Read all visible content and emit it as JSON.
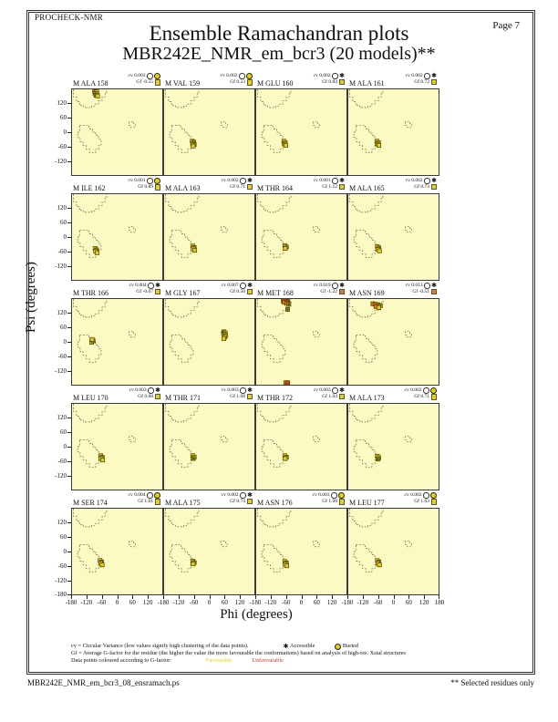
{
  "page": {
    "app_label": "PROCHECK-NMR",
    "page_number": "Page  7",
    "title": "Ensemble Ramachandran plots",
    "subtitle": "MBR242E_NMR_em_bcr3 (20 models)**",
    "footer_left": "MBR242E_NMR_em_bcr3_08_ensramach.ps",
    "footer_right": "** Selected residues only"
  },
  "axes": {
    "xlabel": "Phi (degrees)",
    "ylabel": "Psi (degrees)",
    "x_ticks": [
      -180,
      -120,
      -60,
      0,
      60,
      120
    ],
    "x_end_tick": 180,
    "y_ticks": [
      120,
      60,
      0,
      -60,
      -120
    ],
    "y_bottom_tick": -180,
    "range": [
      -180,
      180
    ]
  },
  "legend": {
    "cv_line": "cv = Circular Variance (low values signify high clustering of the data points).",
    "accessible_label": "Accessible",
    "buried_label": "Buried",
    "gf_line": "Gf = Average G-factor for the residue (the higher the value the more favourable the conformations)  based on analysis of high-res. Xstal structures",
    "points_line": "Data points coloured according to G-factor:",
    "favourable_label": "Favourable",
    "unfavourable_label": "Unfavourable"
  },
  "colors": {
    "plot_background": "#FAFAC2",
    "favourable_point": "#E2CB1E",
    "favourable_dark_point": "#9D8F06",
    "unfavourable_point": "#DE7417",
    "unfavourable_red_point": "#CE4410",
    "favourable_swatch": "#E8D400",
    "unfavourable_swatch": "#E07818",
    "buried_symbol": "#E8D400",
    "region_outline": "#666644"
  },
  "chart_data": {
    "type": "scatter",
    "grid": {
      "columns": 4,
      "rows": 5
    },
    "plots": [
      {
        "residue": "M ALA 158",
        "cv": "cv 0.003",
        "gf": "Gf -0.55",
        "accessibility": "buried",
        "gf_class": "favourable",
        "points": [
          [
            -90,
            172,
            "o"
          ],
          [
            -82,
            170,
            "y"
          ],
          [
            -88,
            163,
            "o"
          ],
          [
            -80,
            160,
            "y"
          ],
          [
            -85,
            155,
            "d"
          ],
          [
            -78,
            152,
            "y"
          ]
        ]
      },
      {
        "residue": "M VAL 159",
        "cv": "cv 0.002",
        "gf": "Gf 0.23",
        "accessibility": "buried",
        "gf_class": "favourable",
        "points": [
          [
            -68,
            -38,
            "y"
          ],
          [
            -62,
            -42,
            "d"
          ],
          [
            -66,
            -48,
            "y"
          ],
          [
            -60,
            -52,
            "d"
          ],
          [
            -64,
            -58,
            "y"
          ]
        ]
      },
      {
        "residue": "M GLU 160",
        "cv": "cv 0.002",
        "gf": "Gf 0.84",
        "accessibility": "accessible",
        "gf_class": "favourable",
        "points": [
          [
            -70,
            -38,
            "y"
          ],
          [
            -64,
            -44,
            "y"
          ],
          [
            -68,
            -50,
            "d"
          ],
          [
            -62,
            -55,
            "y"
          ]
        ]
      },
      {
        "residue": "M ALA 161",
        "cv": "cv 0.002",
        "gf": "Gf 0.72",
        "accessibility": "accessible",
        "gf_class": "favourable",
        "points": [
          [
            -66,
            -38,
            "y"
          ],
          [
            -60,
            -44,
            "y"
          ],
          [
            -64,
            -50,
            "d"
          ],
          [
            -58,
            -55,
            "y"
          ]
        ]
      },
      {
        "residue": "M ILE 162",
        "cv": "cv 0.001",
        "gf": "Gf 0.89",
        "accessibility": "buried",
        "gf_class": "favourable",
        "points": [
          [
            -88,
            -48,
            "y"
          ],
          [
            -82,
            -54,
            "d"
          ],
          [
            -86,
            -60,
            "y"
          ],
          [
            -80,
            -66,
            "y"
          ]
        ]
      },
      {
        "residue": "M ALA 163",
        "cv": "cv 0.002",
        "gf": "Gf 0.71",
        "accessibility": "accessible",
        "gf_class": "favourable",
        "points": [
          [
            -66,
            -38,
            "y"
          ],
          [
            -60,
            -44,
            "d"
          ],
          [
            -64,
            -50,
            "y"
          ],
          [
            -58,
            -56,
            "y"
          ]
        ]
      },
      {
        "residue": "M THR 164",
        "cv": "cv 0.001",
        "gf": "Gf 1.12",
        "accessibility": "accessible",
        "gf_class": "favourable",
        "points": [
          [
            -66,
            -36,
            "y"
          ],
          [
            -60,
            -42,
            "d"
          ],
          [
            -64,
            -48,
            "y"
          ]
        ]
      },
      {
        "residue": "M ALA 165",
        "cv": "cv 0.002",
        "gf": "Gf 0.73",
        "accessibility": "accessible",
        "gf_class": "favourable",
        "points": [
          [
            -64,
            -40,
            "y"
          ],
          [
            -58,
            -46,
            "d"
          ],
          [
            -62,
            -52,
            "y"
          ],
          [
            -56,
            -58,
            "y"
          ]
        ]
      },
      {
        "residue": "M THR 166",
        "cv": "cv 0.004",
        "gf": "Gf -0.07",
        "accessibility": "accessible",
        "gf_class": "favourable",
        "points": [
          [
            -102,
            -2,
            "y"
          ],
          [
            -96,
            4,
            "d"
          ],
          [
            -100,
            10,
            "y"
          ]
        ]
      },
      {
        "residue": "M GLY 167",
        "cv": "cv 0.007",
        "gf": "Gf 0.50",
        "accessibility": "accessible",
        "gf_class": "favourable",
        "points": [
          [
            58,
            42,
            "d"
          ],
          [
            64,
            38,
            "y"
          ],
          [
            60,
            32,
            "d"
          ],
          [
            66,
            26,
            "y"
          ],
          [
            62,
            20,
            "y"
          ],
          [
            58,
            14,
            "y"
          ]
        ]
      },
      {
        "residue": "M MET 168",
        "cv": "cv 0.019",
        "gf": "Gf -1.22",
        "accessibility": "accessible",
        "gf_class": "unfavourable",
        "points": [
          [
            -72,
            176,
            "r"
          ],
          [
            -62,
            174,
            "o"
          ],
          [
            -54,
            170,
            "r"
          ],
          [
            -68,
            166,
            "o"
          ],
          [
            -58,
            162,
            "o"
          ],
          [
            -50,
            158,
            "d"
          ],
          [
            -55,
            136,
            "d"
          ],
          [
            -62,
            -176,
            "o"
          ],
          [
            -54,
            -180,
            "r"
          ]
        ]
      },
      {
        "residue": "M ASN 169",
        "cv": "cv 0.013",
        "gf": "Gf -0.51",
        "accessibility": "accessible",
        "gf_class": "unfavourable",
        "points": [
          [
            -82,
            160,
            "o"
          ],
          [
            -72,
            158,
            "o"
          ],
          [
            -62,
            156,
            "o"
          ],
          [
            -52,
            152,
            "d"
          ],
          [
            -70,
            148,
            "o"
          ],
          [
            -58,
            144,
            "y"
          ]
        ]
      },
      {
        "residue": "M LEU 170",
        "cv": "cv 0.003",
        "gf": "Gf 0.68",
        "accessibility": "accessible",
        "gf_class": "favourable",
        "points": [
          [
            -66,
            -38,
            "y"
          ],
          [
            -60,
            -44,
            "d"
          ],
          [
            -64,
            -50,
            "y"
          ],
          [
            -58,
            -56,
            "y"
          ]
        ]
      },
      {
        "residue": "M THR 171",
        "cv": "cv 0.003",
        "gf": "Gf 1.08",
        "accessibility": "accessible",
        "gf_class": "favourable",
        "points": [
          [
            -66,
            -38,
            "y"
          ],
          [
            -60,
            -44,
            "y"
          ],
          [
            -64,
            -50,
            "d"
          ]
        ]
      },
      {
        "residue": "M THR 172",
        "cv": "cv 0.003",
        "gf": "Gf 1.04",
        "accessibility": "accessible",
        "gf_class": "favourable",
        "points": [
          [
            -66,
            -38,
            "y"
          ],
          [
            -60,
            -44,
            "d"
          ],
          [
            -64,
            -50,
            "y"
          ]
        ]
      },
      {
        "residue": "M ALA 173",
        "cv": "cv 0.002",
        "gf": "Gf 0.71",
        "accessibility": "buried",
        "gf_class": "favourable",
        "points": [
          [
            -64,
            -40,
            "y"
          ],
          [
            -58,
            -46,
            "y"
          ],
          [
            -62,
            -52,
            "d"
          ]
        ]
      },
      {
        "residue": "M SER 174",
        "cv": "cv 0.004",
        "gf": "Gf 1.01",
        "accessibility": "buried",
        "gf_class": "favourable",
        "points": [
          [
            -68,
            -38,
            "y"
          ],
          [
            -62,
            -44,
            "d"
          ],
          [
            -66,
            -50,
            "y"
          ],
          [
            -60,
            -56,
            "y"
          ]
        ]
      },
      {
        "residue": "M ALA 175",
        "cv": "cv 0.002",
        "gf": "Gf 0.74",
        "accessibility": "accessible",
        "gf_class": "favourable",
        "points": [
          [
            -66,
            -40,
            "y"
          ],
          [
            -60,
            -46,
            "d"
          ],
          [
            -64,
            -52,
            "y"
          ]
        ]
      },
      {
        "residue": "M ASN 176",
        "cv": "cv 0.003",
        "gf": "Gf 1.08",
        "accessibility": "buried",
        "gf_class": "favourable",
        "points": [
          [
            -66,
            -42,
            "y"
          ],
          [
            -60,
            -48,
            "d"
          ],
          [
            -64,
            -54,
            "y"
          ],
          [
            -58,
            -60,
            "y"
          ]
        ]
      },
      {
        "residue": "M LEU 177",
        "cv": "cv 0.002",
        "gf": "Gf 1.03",
        "accessibility": "buried",
        "gf_class": "favourable",
        "points": [
          [
            -64,
            -38,
            "y"
          ],
          [
            -58,
            -44,
            "d"
          ],
          [
            -62,
            -50,
            "y"
          ],
          [
            -56,
            -56,
            "y"
          ]
        ]
      }
    ]
  }
}
